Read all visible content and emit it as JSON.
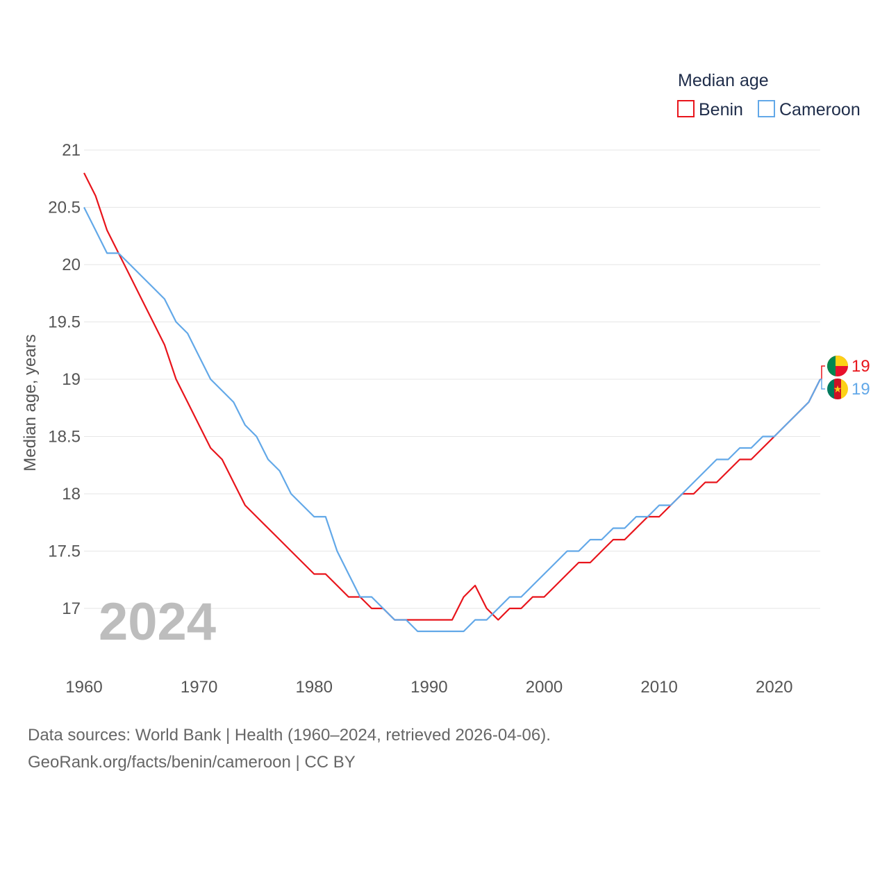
{
  "chart_data": {
    "type": "line",
    "title": "",
    "legend_title": "Median age",
    "xlabel": "",
    "ylabel": "Median age, years",
    "xlim": [
      1960,
      2024
    ],
    "ylim": [
      16.5,
      21.1
    ],
    "yticks": [
      17,
      17.5,
      18,
      18.5,
      19,
      19.5,
      20,
      20.5,
      21
    ],
    "ytick_labels": [
      "17",
      "17.5",
      "18",
      "18.5",
      "19",
      "19.5",
      "20",
      "20.5",
      "21"
    ],
    "xticks": [
      1960,
      1970,
      1980,
      1990,
      2000,
      2010,
      2020
    ],
    "xtick_labels": [
      "1960",
      "1970",
      "1980",
      "1990",
      "2000",
      "2010",
      "2020"
    ],
    "grid": true,
    "legend_position": "top-right",
    "year_watermark": "2024",
    "x": [
      1960,
      1961,
      1962,
      1963,
      1964,
      1965,
      1966,
      1967,
      1968,
      1969,
      1970,
      1971,
      1972,
      1973,
      1974,
      1975,
      1976,
      1977,
      1978,
      1979,
      1980,
      1981,
      1982,
      1983,
      1984,
      1985,
      1986,
      1987,
      1988,
      1989,
      1990,
      1991,
      1992,
      1993,
      1994,
      1995,
      1996,
      1997,
      1998,
      1999,
      2000,
      2001,
      2002,
      2003,
      2004,
      2005,
      2006,
      2007,
      2008,
      2009,
      2010,
      2011,
      2012,
      2013,
      2014,
      2015,
      2016,
      2017,
      2018,
      2019,
      2020,
      2021,
      2022,
      2023,
      2024
    ],
    "series": [
      {
        "name": "Benin",
        "color": "#e8141b",
        "end_label": "19",
        "flag": "benin-flag",
        "values": [
          20.8,
          20.6,
          20.3,
          20.1,
          19.9,
          19.7,
          19.5,
          19.3,
          19.0,
          18.8,
          18.6,
          18.4,
          18.3,
          18.1,
          17.9,
          17.8,
          17.7,
          17.6,
          17.5,
          17.4,
          17.3,
          17.3,
          17.2,
          17.1,
          17.1,
          17.0,
          17.0,
          16.9,
          16.9,
          16.9,
          16.9,
          16.9,
          16.9,
          17.1,
          17.2,
          17.0,
          16.9,
          17.0,
          17.0,
          17.1,
          17.1,
          17.2,
          17.3,
          17.4,
          17.4,
          17.5,
          17.6,
          17.6,
          17.7,
          17.8,
          17.8,
          17.9,
          18.0,
          18.0,
          18.1,
          18.1,
          18.2,
          18.3,
          18.3,
          18.4,
          18.5,
          18.6,
          18.7,
          18.8,
          19.0
        ]
      },
      {
        "name": "Cameroon",
        "color": "#62a8e8",
        "end_label": "19",
        "flag": "cameroon-flag",
        "values": [
          20.5,
          20.3,
          20.1,
          20.1,
          20.0,
          19.9,
          19.8,
          19.7,
          19.5,
          19.4,
          19.2,
          19.0,
          18.9,
          18.8,
          18.6,
          18.5,
          18.3,
          18.2,
          18.0,
          17.9,
          17.8,
          17.8,
          17.5,
          17.3,
          17.1,
          17.1,
          17.0,
          16.9,
          16.9,
          16.8,
          16.8,
          16.8,
          16.8,
          16.8,
          16.9,
          16.9,
          17.0,
          17.1,
          17.1,
          17.2,
          17.3,
          17.4,
          17.5,
          17.5,
          17.6,
          17.6,
          17.7,
          17.7,
          17.8,
          17.8,
          17.9,
          17.9,
          18.0,
          18.1,
          18.2,
          18.3,
          18.3,
          18.4,
          18.4,
          18.5,
          18.5,
          18.6,
          18.7,
          18.8,
          19.0
        ]
      }
    ]
  },
  "footer": {
    "sources": "Data sources: World Bank | Health (1960–2024, retrieved 2026-04-06).",
    "credit": "GeoRank.org/facts/benin/cameroon | CC BY"
  }
}
